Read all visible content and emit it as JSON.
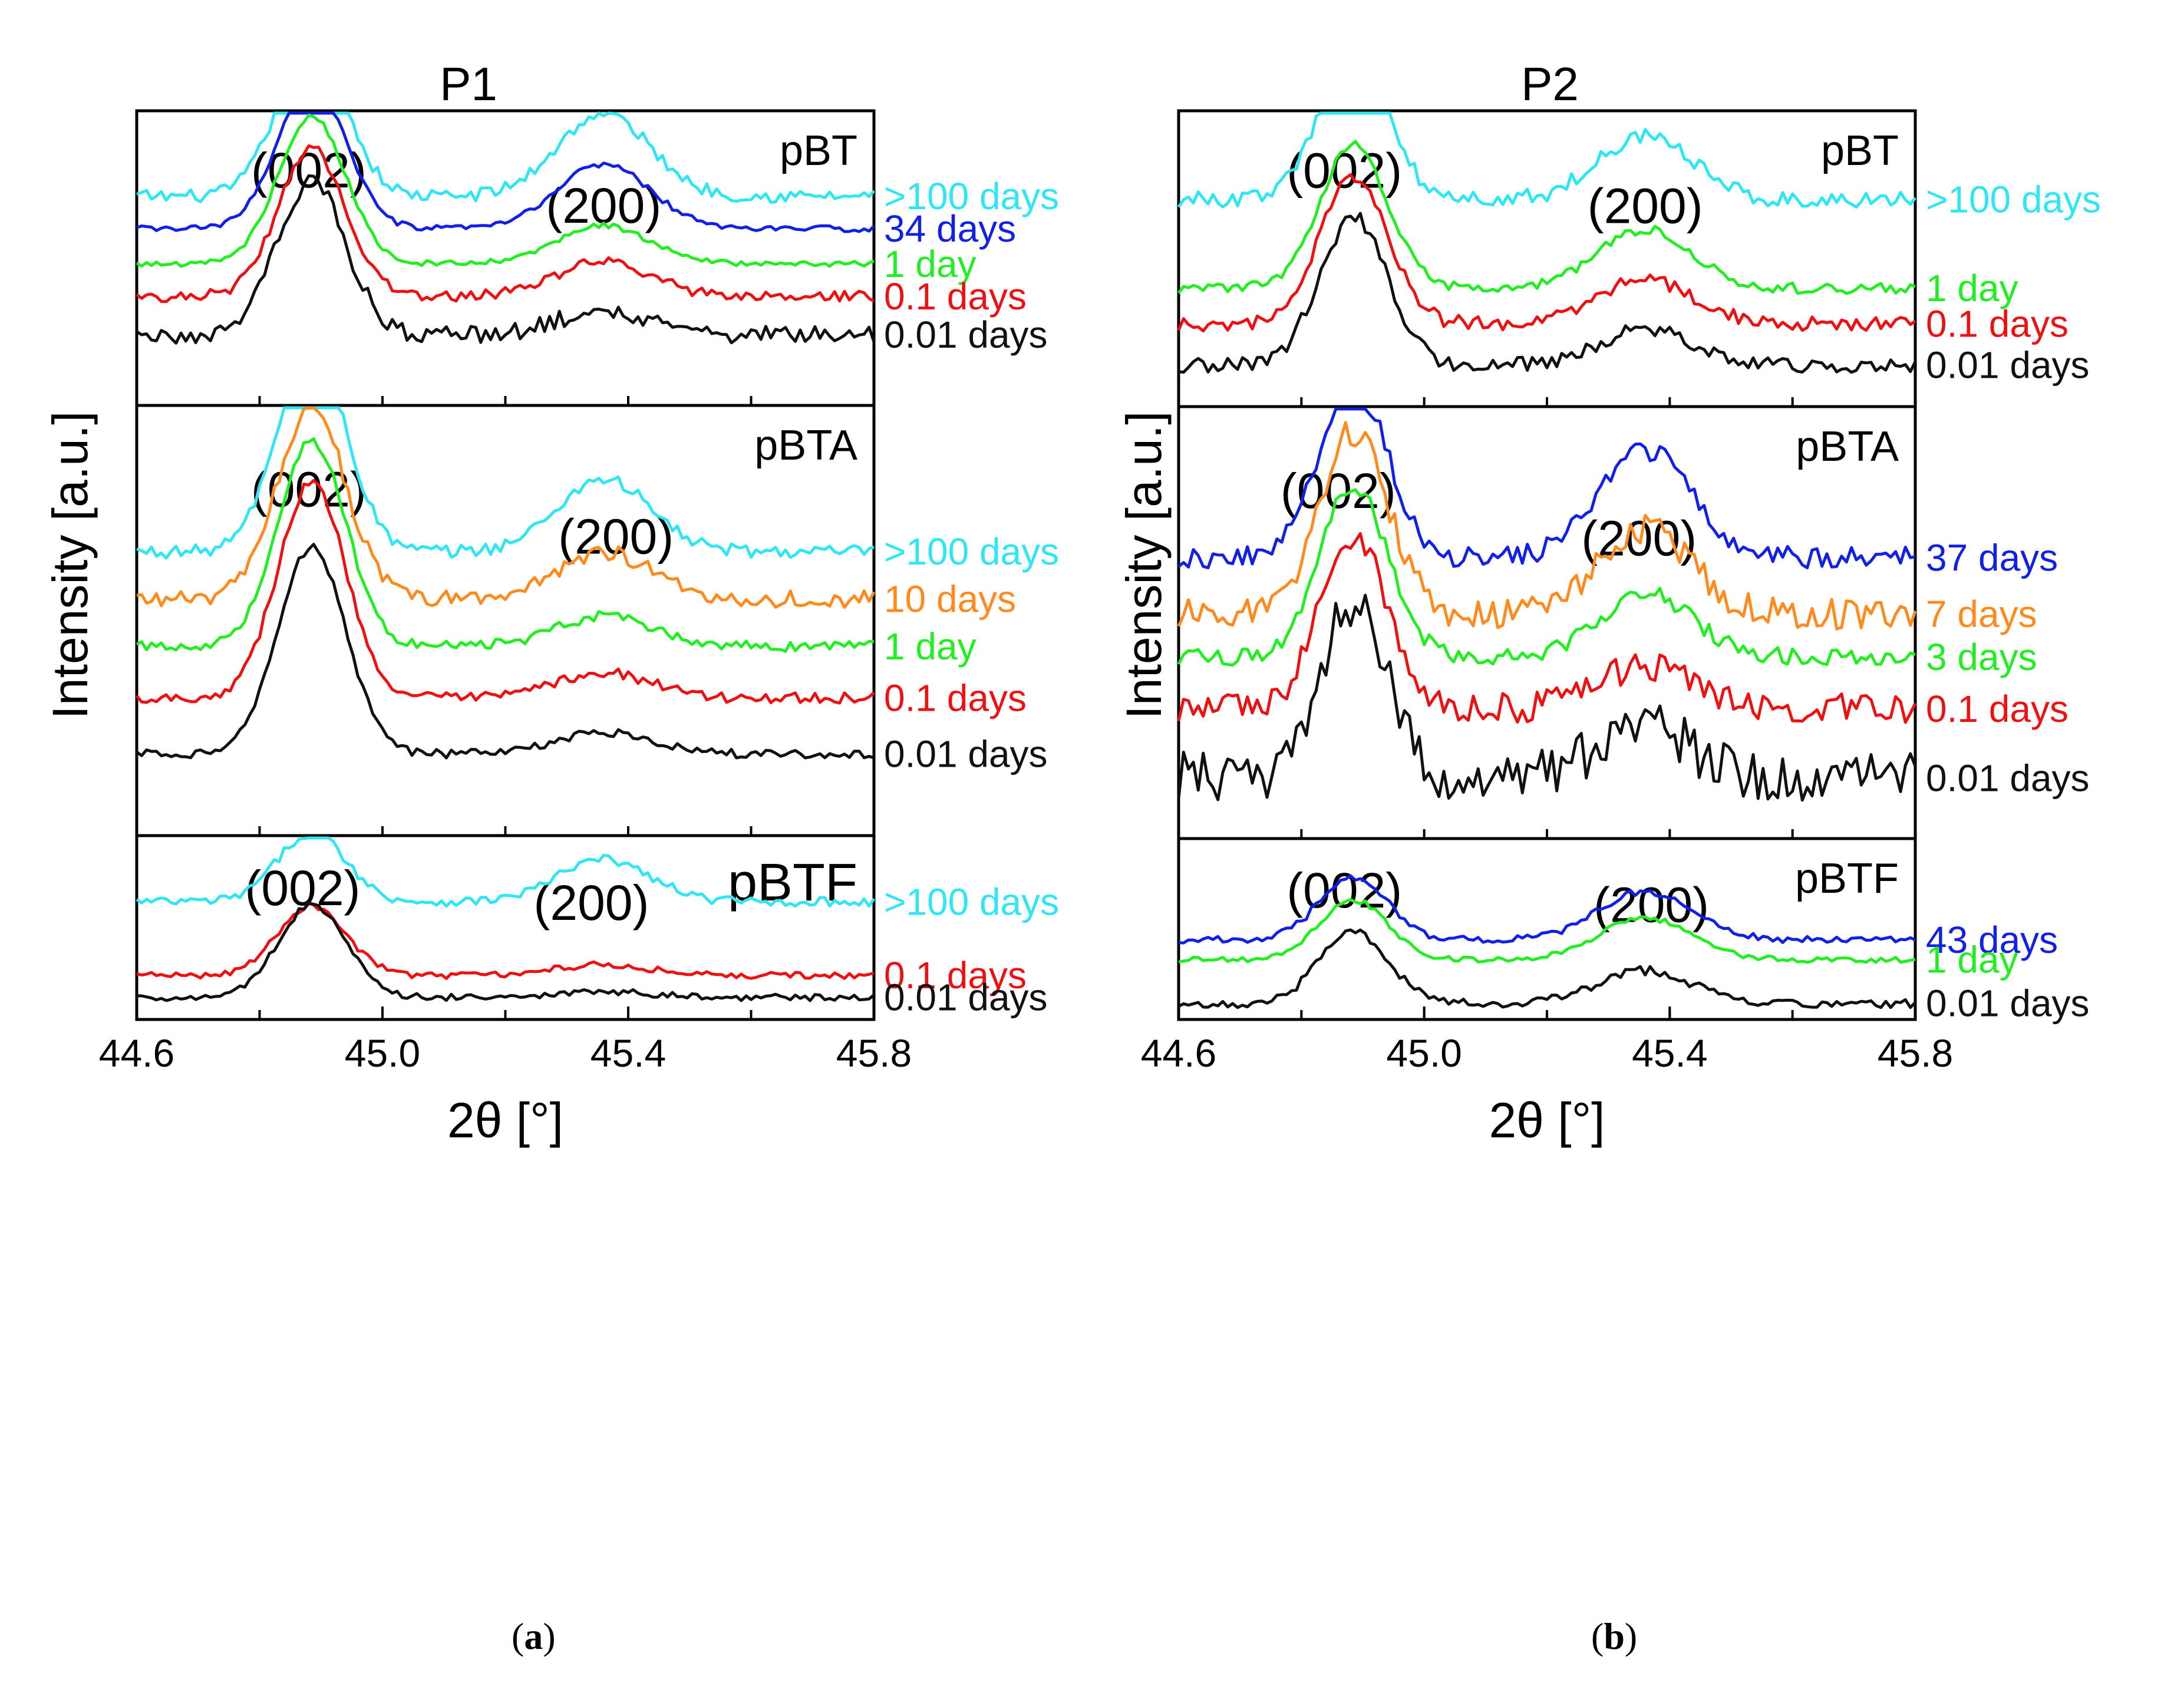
{
  "figure": {
    "caption_a_open": "(",
    "caption_a_letter": "a",
    "caption_a_close": ")",
    "caption_b_open": "(",
    "caption_b_letter": "b",
    "caption_b_close": ")",
    "colors": {
      "cyan": "#2FE6F2",
      "blue": "#1020E8",
      "green": "#22EE22",
      "red": "#EE1111",
      "black": "#111111",
      "orange": "#FF8A1E"
    }
  },
  "chart_data": [
    {
      "type": "line",
      "chart": "a",
      "title": "P1",
      "xlabel": "2θ [°]",
      "ylabel": "Intensity [a.u.]",
      "xlim": [
        44.6,
        45.8
      ],
      "xticks": [
        44.6,
        45.0,
        45.4,
        45.8
      ],
      "xtick_labels": [
        "44.6",
        "45.0",
        "45.4",
        "45.8"
      ],
      "panels": [
        {
          "sample": "pBT",
          "peak_labels": [
            {
              "label": "(002)",
              "position": 44.88
            },
            {
              "label": "(200)",
              "position": 45.36
            }
          ],
          "series": [
            {
              "name": ">100 days",
              "color": "#2FE6F2",
              "baseline": 0.71,
              "peak1": 0.52,
              "peak2": 0.28,
              "noise": 0.022
            },
            {
              "name": "34 days",
              "color": "#1020E8",
              "baseline": 0.6,
              "peak1": 0.5,
              "peak2": 0.22,
              "noise": 0.01
            },
            {
              "name": "1 day",
              "color": "#22EE22",
              "baseline": 0.48,
              "peak1": 0.5,
              "peak2": 0.13,
              "noise": 0.01
            },
            {
              "name": "0.1 days",
              "color": "#EE1111",
              "baseline": 0.37,
              "peak1": 0.5,
              "peak2": 0.12,
              "noise": 0.018
            },
            {
              "name": "0.01 days",
              "color": "#111111",
              "baseline": 0.24,
              "peak1": 0.52,
              "peak2": 0.08,
              "noise": 0.03
            }
          ]
        },
        {
          "sample": "pBTA",
          "peak_labels": [
            {
              "label": "(002)",
              "position": 44.88
            },
            {
              "label": "(200)",
              "position": 45.38
            }
          ],
          "series": [
            {
              "name": ">100 days",
              "color": "#2FE6F2",
              "baseline": 0.66,
              "peak1": 0.48,
              "peak2": 0.17,
              "noise": 0.015
            },
            {
              "name": "10 days",
              "color": "#FF8A1E",
              "baseline": 0.55,
              "peak1": 0.45,
              "peak2": 0.11,
              "noise": 0.02
            },
            {
              "name": "1 day",
              "color": "#22EE22",
              "baseline": 0.44,
              "peak1": 0.48,
              "peak2": 0.07,
              "noise": 0.012
            },
            {
              "name": "0.1 days",
              "color": "#EE1111",
              "baseline": 0.32,
              "peak1": 0.5,
              "peak2": 0.06,
              "noise": 0.012
            },
            {
              "name": "0.01 days",
              "color": "#111111",
              "baseline": 0.19,
              "peak1": 0.48,
              "peak2": 0.05,
              "noise": 0.01
            }
          ]
        },
        {
          "sample": "pBTF",
          "peak_labels": [
            {
              "label": "(002)",
              "position": 44.87
            },
            {
              "label": "(200)",
              "position": 45.34
            }
          ],
          "series": [
            {
              "name": ">100 days",
              "color": "#2FE6F2",
              "baseline": 0.64,
              "peak1": 0.38,
              "peak2": 0.23,
              "noise": 0.025
            },
            {
              "name": "0.1 days",
              "color": "#EE1111",
              "baseline": 0.24,
              "peak1": 0.38,
              "peak2": 0.06,
              "noise": 0.018
            },
            {
              "name": "0.01 days",
              "color": "#111111",
              "baseline": 0.12,
              "peak1": 0.5,
              "peak2": 0.03,
              "noise": 0.018
            }
          ]
        }
      ]
    },
    {
      "type": "line",
      "chart": "b",
      "title": "P2",
      "xlabel": "2θ [°]",
      "ylabel": "Intensity [a.u.]",
      "xlim": [
        44.6,
        45.8
      ],
      "xticks": [
        44.6,
        45.0,
        45.4,
        45.8
      ],
      "xtick_labels": [
        "44.6",
        "45.0",
        "45.4",
        "45.8"
      ],
      "panels": [
        {
          "sample": "pBT",
          "peak_labels": [
            {
              "label": "(002)",
              "position": 44.87
            },
            {
              "label": "(200)",
              "position": 45.36
            }
          ],
          "series": [
            {
              "name": ">100 days",
              "color": "#2FE6F2",
              "baseline": 0.7,
              "peak1": 0.5,
              "peak2": 0.22,
              "noise": 0.028
            },
            {
              "name": "1 day",
              "color": "#22EE22",
              "baseline": 0.4,
              "peak1": 0.48,
              "peak2": 0.2,
              "noise": 0.018
            },
            {
              "name": "0.1 days",
              "color": "#EE1111",
              "baseline": 0.28,
              "peak1": 0.5,
              "peak2": 0.15,
              "noise": 0.025
            },
            {
              "name": "0.01 days",
              "color": "#111111",
              "baseline": 0.14,
              "peak1": 0.5,
              "peak2": 0.12,
              "noise": 0.025
            }
          ]
        },
        {
          "sample": "pBTA",
          "peak_labels": [
            {
              "label": "(002)",
              "position": 44.86
            },
            {
              "label": "(200)",
              "position": 45.35
            }
          ],
          "series": [
            {
              "name": "37 days",
              "color": "#1020E8",
              "baseline": 0.65,
              "peak1": 0.4,
              "peak2": 0.25,
              "noise": 0.025
            },
            {
              "name": "7 days",
              "color": "#FF8A1E",
              "baseline": 0.52,
              "peak1": 0.42,
              "peak2": 0.2,
              "noise": 0.035
            },
            {
              "name": "3 days",
              "color": "#22EE22",
              "baseline": 0.42,
              "peak1": 0.4,
              "peak2": 0.15,
              "noise": 0.02
            },
            {
              "name": "0.1 days",
              "color": "#EE1111",
              "baseline": 0.3,
              "peak1": 0.4,
              "peak2": 0.1,
              "noise": 0.035
            },
            {
              "name": "0.01 days",
              "color": "#111111",
              "baseline": 0.14,
              "peak1": 0.4,
              "peak2": 0.12,
              "noise": 0.06
            }
          ]
        },
        {
          "sample": "pBTF",
          "peak_labels": [
            {
              "label": "(002)",
              "position": 44.87
            },
            {
              "label": "(200)",
              "position": 45.37
            }
          ],
          "series": [
            {
              "name": "43 days",
              "color": "#1020E8",
              "baseline": 0.44,
              "peak1": 0.35,
              "peak2": 0.27,
              "noise": 0.02
            },
            {
              "name": "1 day",
              "color": "#22EE22",
              "baseline": 0.33,
              "peak1": 0.33,
              "peak2": 0.23,
              "noise": 0.015
            },
            {
              "name": "0.01 days",
              "color": "#111111",
              "baseline": 0.09,
              "peak1": 0.4,
              "peak2": 0.18,
              "noise": 0.025
            }
          ]
        }
      ]
    }
  ]
}
